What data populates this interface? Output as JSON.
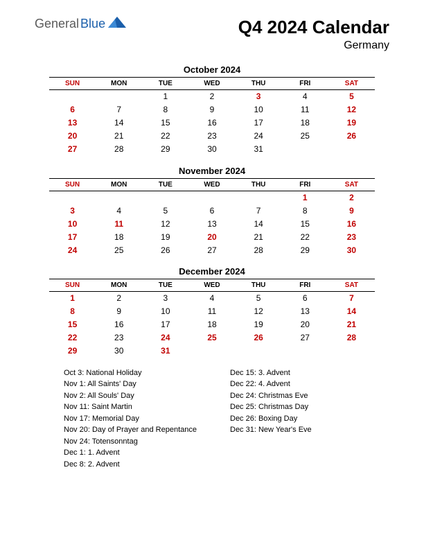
{
  "brand": {
    "word1": "General",
    "word2": "Blue",
    "color1": "#5a5a5a",
    "color2": "#1b5fab"
  },
  "title": "Q4 2024 Calendar",
  "subtitle": "Germany",
  "dayHeaders": [
    "SUN",
    "MON",
    "TUE",
    "WED",
    "THU",
    "FRI",
    "SAT"
  ],
  "colors": {
    "holiday": "#c00000",
    "text": "#000000",
    "background": "#ffffff"
  },
  "months": [
    {
      "name": "October 2024",
      "weeks": [
        [
          {
            "d": ""
          },
          {
            "d": ""
          },
          {
            "d": "1"
          },
          {
            "d": "2"
          },
          {
            "d": "3",
            "h": true
          },
          {
            "d": "4"
          },
          {
            "d": "5",
            "h": true
          }
        ],
        [
          {
            "d": "6",
            "h": true
          },
          {
            "d": "7"
          },
          {
            "d": "8"
          },
          {
            "d": "9"
          },
          {
            "d": "10"
          },
          {
            "d": "11"
          },
          {
            "d": "12",
            "h": true
          }
        ],
        [
          {
            "d": "13",
            "h": true
          },
          {
            "d": "14"
          },
          {
            "d": "15"
          },
          {
            "d": "16"
          },
          {
            "d": "17"
          },
          {
            "d": "18"
          },
          {
            "d": "19",
            "h": true
          }
        ],
        [
          {
            "d": "20",
            "h": true
          },
          {
            "d": "21"
          },
          {
            "d": "22"
          },
          {
            "d": "23"
          },
          {
            "d": "24"
          },
          {
            "d": "25"
          },
          {
            "d": "26",
            "h": true
          }
        ],
        [
          {
            "d": "27",
            "h": true
          },
          {
            "d": "28"
          },
          {
            "d": "29"
          },
          {
            "d": "30"
          },
          {
            "d": "31"
          },
          {
            "d": ""
          },
          {
            "d": ""
          }
        ]
      ]
    },
    {
      "name": "November 2024",
      "weeks": [
        [
          {
            "d": ""
          },
          {
            "d": ""
          },
          {
            "d": ""
          },
          {
            "d": ""
          },
          {
            "d": ""
          },
          {
            "d": "1",
            "h": true
          },
          {
            "d": "2",
            "h": true
          }
        ],
        [
          {
            "d": "3",
            "h": true
          },
          {
            "d": "4"
          },
          {
            "d": "5"
          },
          {
            "d": "6"
          },
          {
            "d": "7"
          },
          {
            "d": "8"
          },
          {
            "d": "9",
            "h": true
          }
        ],
        [
          {
            "d": "10",
            "h": true
          },
          {
            "d": "11",
            "h": true
          },
          {
            "d": "12"
          },
          {
            "d": "13"
          },
          {
            "d": "14"
          },
          {
            "d": "15"
          },
          {
            "d": "16",
            "h": true
          }
        ],
        [
          {
            "d": "17",
            "h": true
          },
          {
            "d": "18"
          },
          {
            "d": "19"
          },
          {
            "d": "20",
            "h": true
          },
          {
            "d": "21"
          },
          {
            "d": "22"
          },
          {
            "d": "23",
            "h": true
          }
        ],
        [
          {
            "d": "24",
            "h": true
          },
          {
            "d": "25"
          },
          {
            "d": "26"
          },
          {
            "d": "27"
          },
          {
            "d": "28"
          },
          {
            "d": "29"
          },
          {
            "d": "30",
            "h": true
          }
        ]
      ]
    },
    {
      "name": "December 2024",
      "weeks": [
        [
          {
            "d": "1",
            "h": true
          },
          {
            "d": "2"
          },
          {
            "d": "3"
          },
          {
            "d": "4"
          },
          {
            "d": "5"
          },
          {
            "d": "6"
          },
          {
            "d": "7",
            "h": true
          }
        ],
        [
          {
            "d": "8",
            "h": true
          },
          {
            "d": "9"
          },
          {
            "d": "10"
          },
          {
            "d": "11"
          },
          {
            "d": "12"
          },
          {
            "d": "13"
          },
          {
            "d": "14",
            "h": true
          }
        ],
        [
          {
            "d": "15",
            "h": true
          },
          {
            "d": "16"
          },
          {
            "d": "17"
          },
          {
            "d": "18"
          },
          {
            "d": "19"
          },
          {
            "d": "20"
          },
          {
            "d": "21",
            "h": true
          }
        ],
        [
          {
            "d": "22",
            "h": true
          },
          {
            "d": "23"
          },
          {
            "d": "24",
            "h": true
          },
          {
            "d": "25",
            "h": true
          },
          {
            "d": "26",
            "h": true
          },
          {
            "d": "27"
          },
          {
            "d": "28",
            "h": true
          }
        ],
        [
          {
            "d": "29",
            "h": true
          },
          {
            "d": "30"
          },
          {
            "d": "31",
            "h": true
          },
          {
            "d": ""
          },
          {
            "d": ""
          },
          {
            "d": ""
          },
          {
            "d": ""
          }
        ]
      ]
    }
  ],
  "holidaysCol1": [
    "Oct 3: National Holiday",
    "Nov 1: All Saints' Day",
    "Nov 2: All Souls' Day",
    "Nov 11: Saint Martin",
    "Nov 17: Memorial Day",
    "Nov 20: Day of Prayer and Repentance",
    "Nov 24: Totensonntag",
    "Dec 1: 1. Advent",
    "Dec 8: 2. Advent"
  ],
  "holidaysCol2": [
    "Dec 15: 3. Advent",
    "Dec 22: 4. Advent",
    "Dec 24: Christmas Eve",
    "Dec 25: Christmas Day",
    "Dec 26: Boxing Day",
    "Dec 31: New Year's Eve"
  ]
}
